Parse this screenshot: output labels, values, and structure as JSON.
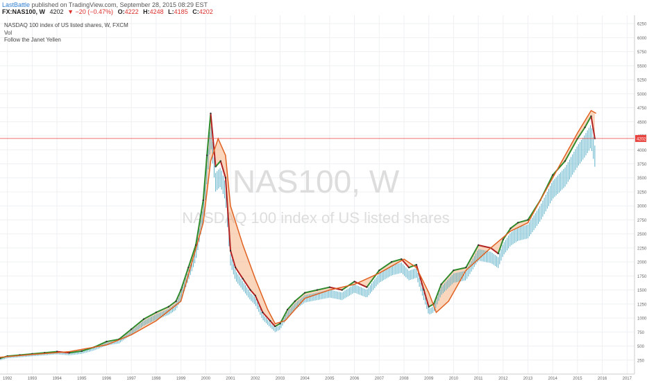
{
  "header": {
    "author": "LastBattle",
    "published_text": "published on TradingView.com, September 28, 2015 08:29 EST",
    "symbol": "FX:NAS100, W",
    "last": "4202",
    "change": "−20 (−0.47%)",
    "open_label": "O:",
    "open": "4222",
    "high_label": "H:",
    "high": "4248",
    "low_label": "L:",
    "low": "4185",
    "close_label": "C:",
    "close": "4202"
  },
  "legend": {
    "title": "NASDAQ 100 index of US listed shares, W, FXCM",
    "line2": "Vol",
    "line3": "Follow the Janet Yellen"
  },
  "watermark": {
    "big": "NAS100, W",
    "small": "NASDAQ 100 index of US listed shares"
  },
  "chart_data": {
    "type": "line",
    "price_line": 4202,
    "price_line_label": "4202",
    "ylim": [
      0,
      6400
    ],
    "y_ticks": [
      250,
      500,
      750,
      1000,
      1250,
      1500,
      1750,
      2000,
      2250,
      2500,
      2750,
      3000,
      3250,
      3500,
      3750,
      4000,
      4250,
      4500,
      4750,
      5000,
      5250,
      5500,
      5750,
      6000,
      6250
    ],
    "xlim": [
      1991.7,
      2017.3
    ],
    "x_ticks": [
      "1992",
      "1993",
      "1994",
      "1995",
      "1996",
      "1997",
      "1998",
      "1999",
      "2000",
      "2001",
      "2002",
      "2003",
      "2004",
      "2005",
      "2006",
      "2007",
      "2008",
      "2009",
      "2010",
      "2011",
      "2012",
      "2013",
      "2014",
      "2015",
      "2016",
      "2017"
    ],
    "colors": {
      "up": "#2e8b2e",
      "down": "#b22222",
      "lower_band": "#5ab0c8",
      "smooth_line": "#e06020",
      "fill": "#f5a56a",
      "price_line": "#e8433f"
    },
    "series": [
      {
        "x": [
          1991.7,
          1992.0,
          1992.5,
          1993.0,
          1993.5,
          1994.0,
          1994.5,
          1995.0,
          1995.5,
          1996.0,
          1996.5,
          1997.0,
          1997.5,
          1998.0,
          1998.5,
          1998.8,
          1999.0,
          1999.3,
          1999.6,
          1999.9,
          2000.05,
          2000.2,
          2000.4,
          2000.6,
          2000.8,
          2001.0,
          2001.2,
          2001.5,
          2001.8,
          2002.0,
          2002.3,
          2002.6,
          2002.8,
          2003.0,
          2003.3,
          2003.6,
          2004.0,
          2004.5,
          2005.0,
          2005.5,
          2006.0,
          2006.5,
          2007.0,
          2007.5,
          2007.9,
          2008.2,
          2008.5,
          2008.8,
          2009.0,
          2009.2,
          2009.5,
          2010.0,
          2010.5,
          2011.0,
          2011.5,
          2011.8,
          2012.0,
          2012.3,
          2012.6,
          2013.0,
          2013.5,
          2014.0,
          2014.5,
          2015.0,
          2015.3,
          2015.55,
          2015.7
        ],
        "values": [
          280,
          320,
          340,
          360,
          380,
          400,
          380,
          410,
          480,
          580,
          620,
          800,
          980,
          1100,
          1200,
          1300,
          1500,
          1900,
          2300,
          3100,
          3900,
          4650,
          3700,
          3800,
          3500,
          2200,
          1900,
          1700,
          1500,
          1400,
          1100,
          950,
          850,
          900,
          1150,
          1300,
          1450,
          1500,
          1550,
          1500,
          1650,
          1550,
          1850,
          2000,
          2050,
          1900,
          1950,
          1500,
          1200,
          1250,
          1600,
          1850,
          1900,
          2300,
          2250,
          2150,
          2400,
          2600,
          2700,
          2750,
          3100,
          3550,
          3800,
          4200,
          4400,
          4600,
          4202
        ]
      },
      {
        "x": [
          1991.7,
          1993.0,
          1994.5,
          1996.0,
          1997.0,
          1998.0,
          1999.0,
          1999.9,
          2000.2,
          2000.5,
          2000.8,
          2001.0,
          2001.5,
          2002.0,
          2002.5,
          2002.8,
          2003.2,
          2004.0,
          2005.0,
          2006.0,
          2007.0,
          2008.0,
          2008.5,
          2009.0,
          2009.3,
          2009.8,
          2010.5,
          2011.5,
          2012.3,
          2013.0,
          2014.0,
          2015.0,
          2015.55,
          2015.75
        ],
        "values": [
          300,
          350,
          400,
          520,
          700,
          950,
          1300,
          2700,
          3800,
          4200,
          3900,
          3000,
          2300,
          1700,
          1150,
          900,
          950,
          1350,
          1500,
          1600,
          1800,
          2050,
          1900,
          1450,
          1100,
          1300,
          1850,
          2250,
          2550,
          2700,
          3500,
          4300,
          4700,
          4650
        ]
      }
    ]
  }
}
